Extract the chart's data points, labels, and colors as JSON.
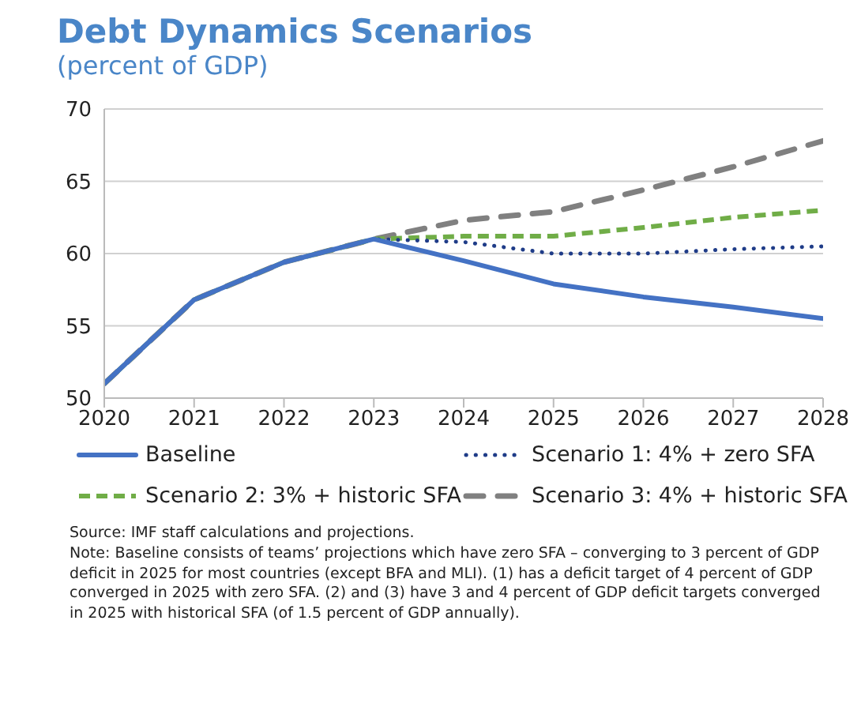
{
  "chart_data": {
    "type": "line",
    "title": "Debt Dynamics Scenarios",
    "subtitle": "(percent of GDP)",
    "x": [
      2020,
      2021,
      2022,
      2023,
      2024,
      2025,
      2026,
      2027,
      2028
    ],
    "xlim": [
      2020,
      2028
    ],
    "xticks": [
      2020,
      2021,
      2022,
      2023,
      2024,
      2025,
      2026,
      2027,
      2028
    ],
    "ylim": [
      50,
      70
    ],
    "yticks": [
      50,
      55,
      60,
      65,
      70
    ],
    "grid": "y",
    "legend": "bottom",
    "marker": "none",
    "series": [
      {
        "name": "Baseline",
        "color": "#4472c4",
        "line_style": "solid",
        "values": [
          51,
          56.8,
          59.4,
          61,
          59.5,
          57.9,
          57,
          56.3,
          55.5
        ]
      },
      {
        "name": "Scenario 1: 4% + zero SFA",
        "color": "#1f3c88",
        "line_style": "dotted",
        "values": [
          51,
          56.8,
          59.4,
          61,
          60.8,
          60,
          60,
          60.3,
          60.5
        ]
      },
      {
        "name": "Scenario 2: 3% + historic SFA",
        "color": "#70ad47",
        "line_style": "dashed",
        "values": [
          51,
          56.8,
          59.4,
          61,
          61.2,
          61.2,
          61.8,
          62.5,
          63
        ]
      },
      {
        "name": "Scenario 3: 4% + historic SFA",
        "color": "#808080",
        "line_style": "dashed",
        "values": [
          51,
          56.8,
          59.4,
          61,
          62.3,
          62.9,
          64.4,
          66,
          67.8
        ]
      }
    ],
    "annotations": [
      "Source: IMF staff calculations and projections.",
      "Note: Baseline consists of teams’ projections which have zero SFA  – converging to 3 percent of GDP deficit in 2025 for most countries (except  BFA and MLI). (1) has a deficit target of 4 percent of GDP converged in 2025 with zero SFA. (2) and (3) have 3 and 4 percent of GDP deficit targets converged in 2025 with historical SFA (of 1.5 percent of GDP annually)."
    ]
  }
}
